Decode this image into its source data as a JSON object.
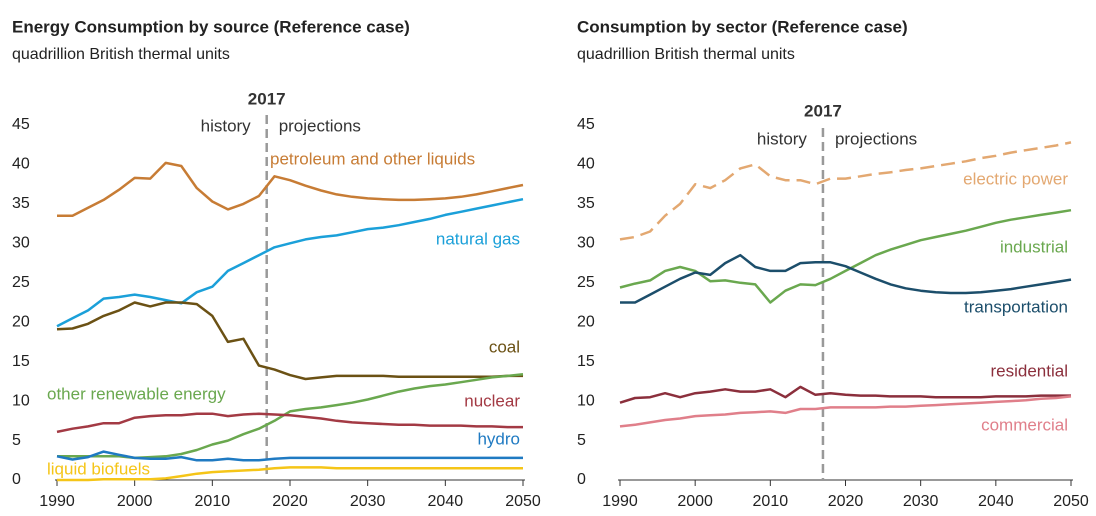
{
  "chart_data": [
    {
      "type": "line",
      "title": "Energy Consumption by source (Reference case)",
      "subtitle": "quadrillion British thermal units",
      "x": [
        1990,
        1992,
        1994,
        1996,
        1998,
        2000,
        2002,
        2004,
        2006,
        2008,
        2010,
        2012,
        2014,
        2016,
        2018,
        2020,
        2022,
        2024,
        2026,
        2028,
        2030,
        2032,
        2034,
        2036,
        2038,
        2040,
        2042,
        2044,
        2046,
        2048,
        2050
      ],
      "xlim": [
        1990,
        2050
      ],
      "xticks": [
        1990,
        2000,
        2010,
        2020,
        2030,
        2040,
        2050
      ],
      "ylim": [
        0,
        45
      ],
      "yticks": [
        0,
        5,
        10,
        15,
        20,
        25,
        30,
        35,
        40,
        45
      ],
      "grid": false,
      "vline": 2017,
      "left_note": "history",
      "right_note": "projections",
      "series": [
        {
          "name": "petroleum and other liquids",
          "color": "#c77c35",
          "values": [
            33.5,
            33.5,
            34.5,
            35.5,
            36.8,
            38.3,
            38.2,
            40.2,
            39.8,
            37,
            35.3,
            34.3,
            35,
            36,
            38.5,
            38,
            37.3,
            36.7,
            36.2,
            35.9,
            35.7,
            35.6,
            35.5,
            35.5,
            35.6,
            35.7,
            35.9,
            36.2,
            36.6,
            37,
            37.4
          ]
        },
        {
          "name": "natural gas",
          "color": "#1ba0d9",
          "values": [
            19.5,
            20.5,
            21.5,
            23,
            23.2,
            23.5,
            23.2,
            22.8,
            22.4,
            23.8,
            24.5,
            26.5,
            27.5,
            28.5,
            29.5,
            30,
            30.5,
            30.8,
            31,
            31.4,
            31.8,
            32,
            32.3,
            32.7,
            33.1,
            33.6,
            34,
            34.4,
            34.8,
            35.2,
            35.6
          ]
        },
        {
          "name": "coal",
          "color": "#6b5114",
          "values": [
            19.1,
            19.2,
            19.8,
            20.8,
            21.5,
            22.5,
            22,
            22.5,
            22.5,
            22.3,
            20.8,
            17.5,
            17.9,
            14.5,
            14,
            13.3,
            12.8,
            13,
            13.2,
            13.2,
            13.2,
            13.2,
            13.1,
            13.1,
            13.1,
            13.1,
            13.1,
            13.1,
            13.1,
            13.2,
            13.2
          ]
        },
        {
          "name": "other renewable energy",
          "color": "#6aa84f",
          "values": [
            3,
            3,
            3,
            3,
            3,
            2.8,
            2.9,
            3,
            3.3,
            3.8,
            4.5,
            5,
            5.8,
            6.5,
            7.5,
            8.7,
            9,
            9.2,
            9.5,
            9.8,
            10.2,
            10.7,
            11.2,
            11.6,
            11.9,
            12.1,
            12.4,
            12.7,
            13,
            13.2,
            13.4
          ]
        },
        {
          "name": "nuclear",
          "color": "#a33a44",
          "values": [
            6.1,
            6.5,
            6.8,
            7.2,
            7.2,
            7.9,
            8.1,
            8.2,
            8.2,
            8.4,
            8.4,
            8.1,
            8.3,
            8.4,
            8.3,
            8.2,
            8,
            7.8,
            7.5,
            7.3,
            7.2,
            7.1,
            7,
            7,
            6.9,
            6.9,
            6.9,
            6.8,
            6.8,
            6.7,
            6.7
          ]
        },
        {
          "name": "hydro",
          "color": "#1f7ac2",
          "values": [
            3,
            2.6,
            2.9,
            3.6,
            3.2,
            2.8,
            2.7,
            2.7,
            2.9,
            2.5,
            2.5,
            2.7,
            2.5,
            2.5,
            2.7,
            2.8,
            2.8,
            2.8,
            2.8,
            2.8,
            2.8,
            2.8,
            2.8,
            2.8,
            2.8,
            2.8,
            2.8,
            2.8,
            2.8,
            2.8,
            2.8
          ]
        },
        {
          "name": "liquid biofuels",
          "color": "#f5c518",
          "values": [
            0,
            0,
            0,
            0.1,
            0.1,
            0.1,
            0.1,
            0.2,
            0.5,
            0.8,
            1,
            1.1,
            1.2,
            1.3,
            1.5,
            1.6,
            1.6,
            1.6,
            1.5,
            1.5,
            1.5,
            1.5,
            1.5,
            1.5,
            1.5,
            1.5,
            1.5,
            1.5,
            1.5,
            1.5,
            1.5
          ]
        }
      ]
    },
    {
      "type": "line",
      "title": "Consumption by sector (Reference case)",
      "subtitle": "quadrillion British thermal units",
      "x": [
        1990,
        1992,
        1994,
        1996,
        1998,
        2000,
        2002,
        2004,
        2006,
        2008,
        2010,
        2012,
        2014,
        2016,
        2018,
        2020,
        2022,
        2024,
        2026,
        2028,
        2030,
        2032,
        2034,
        2036,
        2038,
        2040,
        2042,
        2044,
        2046,
        2048,
        2050
      ],
      "xlim": [
        1990,
        2050
      ],
      "xticks": [
        1990,
        2000,
        2010,
        2020,
        2030,
        2040,
        2050
      ],
      "ylim": [
        0,
        45
      ],
      "yticks": [
        0,
        5,
        10,
        15,
        20,
        25,
        30,
        35,
        40,
        45
      ],
      "grid": false,
      "vline": 2017,
      "left_note": "history",
      "right_note": "projections",
      "series": [
        {
          "name": "electric power",
          "color": "#e3a871",
          "dashed": true,
          "values": [
            30.5,
            30.8,
            31.5,
            33.5,
            35,
            37.5,
            37,
            38,
            39.5,
            40,
            38.5,
            38,
            38,
            37.5,
            38.2,
            38.2,
            38.5,
            38.8,
            39,
            39.3,
            39.5,
            39.8,
            40.1,
            40.4,
            40.8,
            41.1,
            41.5,
            41.8,
            42.1,
            42.4,
            42.8
          ]
        },
        {
          "name": "industrial",
          "color": "#6aa84f",
          "values": [
            24.4,
            24.9,
            25.3,
            26.5,
            27,
            26.5,
            25.2,
            25.3,
            25,
            24.8,
            22.5,
            24,
            24.8,
            24.7,
            25.5,
            26.5,
            27.5,
            28.5,
            29.2,
            29.8,
            30.4,
            30.8,
            31.2,
            31.6,
            32.1,
            32.6,
            33,
            33.3,
            33.6,
            33.9,
            34.2
          ]
        },
        {
          "name": "transportation",
          "color": "#1c4e6b",
          "values": [
            22.5,
            22.5,
            23.5,
            24.5,
            25.5,
            26.3,
            26,
            27.5,
            28.5,
            27,
            26.5,
            26.5,
            27.5,
            27.6,
            27.6,
            27.1,
            26.3,
            25.5,
            24.8,
            24.3,
            24,
            23.8,
            23.7,
            23.7,
            23.8,
            24,
            24.2,
            24.5,
            24.8,
            25.1,
            25.4
          ]
        },
        {
          "name": "residential",
          "color": "#8b2f3c",
          "values": [
            9.8,
            10.4,
            10.5,
            11,
            10.5,
            11,
            11.2,
            11.5,
            11.2,
            11.2,
            11.5,
            10.5,
            11.8,
            10.8,
            11,
            10.8,
            10.7,
            10.7,
            10.6,
            10.6,
            10.6,
            10.5,
            10.5,
            10.5,
            10.5,
            10.6,
            10.6,
            10.6,
            10.7,
            10.7,
            10.7
          ]
        },
        {
          "name": "commercial",
          "color": "#e07f8a",
          "values": [
            6.8,
            7,
            7.3,
            7.6,
            7.8,
            8.1,
            8.2,
            8.3,
            8.5,
            8.6,
            8.7,
            8.5,
            9,
            9,
            9.2,
            9.2,
            9.2,
            9.2,
            9.3,
            9.3,
            9.4,
            9.5,
            9.6,
            9.7,
            9.8,
            9.9,
            10,
            10.1,
            10.3,
            10.4,
            10.6
          ]
        }
      ]
    }
  ]
}
